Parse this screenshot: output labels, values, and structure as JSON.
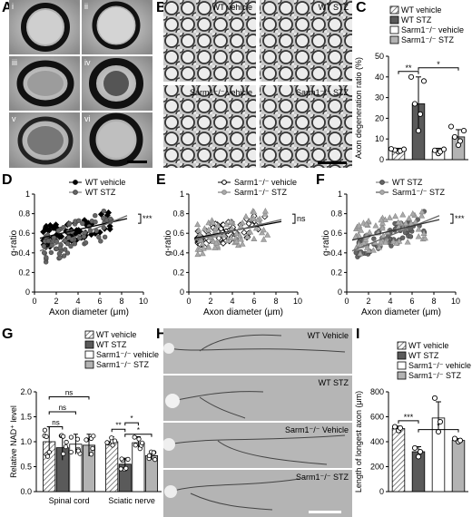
{
  "panel_labels": [
    "A",
    "B",
    "C",
    "D",
    "E",
    "F",
    "G",
    "H",
    "I"
  ],
  "panelA": {
    "sublabels": [
      "i",
      "ii",
      "iii",
      "iv",
      "v",
      "vi"
    ]
  },
  "panelB": {
    "labels": [
      "WT vehicle",
      "WT STZ",
      "Sarm1⁻/⁻ vehicle",
      "Sarm1⁻/⁻ STZ"
    ]
  },
  "panelH": {
    "labels": [
      "WT Vehicle",
      "WT STZ",
      "Sarm1⁻/⁻ Vehicle",
      "Sarm1⁻/⁻ STZ"
    ]
  },
  "chart_data": [
    {
      "id": "C",
      "type": "bar",
      "ylabel": "Axon degeneration ratio (%)",
      "ylim": [
        0,
        50
      ],
      "yticks": [
        0,
        10,
        20,
        30,
        40,
        50
      ],
      "categories": [
        "WT vehicle",
        "WT STZ",
        "Sarm1⁻/⁻ vehicle",
        "Sarm1⁻/⁻ STZ"
      ],
      "values": [
        4.5,
        27,
        4,
        11
      ],
      "errors": [
        1,
        13,
        1.5,
        3.5
      ],
      "points": [
        [
          3.8,
          4.2,
          4.6,
          5.0,
          5.2
        ],
        [
          14,
          22,
          27,
          38,
          40
        ],
        [
          3,
          3.8,
          4.5,
          5
        ],
        [
          7,
          9,
          11,
          14,
          16
        ]
      ],
      "legend": [
        "WT vehicle",
        "WT STZ",
        "Sarm1⁻/⁻ vehicle",
        "Sarm1⁻/⁻ STZ"
      ],
      "annotations": [
        {
          "text": "**",
          "from": 0,
          "to": 1
        },
        {
          "text": "*",
          "from": 1,
          "to": 3
        }
      ]
    },
    {
      "id": "D",
      "type": "scatter",
      "xlabel": "Axon diameter (μm)",
      "ylabel": "g-ratio",
      "xlim": [
        0,
        10
      ],
      "ylim": [
        0,
        1.0
      ],
      "xticks": [
        0,
        2,
        4,
        6,
        8,
        10
      ],
      "yticks": [
        0,
        0.2,
        0.4,
        0.6,
        0.8,
        1.0
      ],
      "series": [
        {
          "name": "WT vehicle",
          "fit": [
            [
              0.5,
              0.55
            ],
            [
              8.5,
              0.75
            ]
          ]
        },
        {
          "name": "WT STZ",
          "fit": [
            [
              0.5,
              0.42
            ],
            [
              8.5,
              0.78
            ]
          ]
        }
      ],
      "annotation": "***"
    },
    {
      "id": "E",
      "type": "scatter",
      "xlabel": "Axon diameter (μm)",
      "ylabel": "g-ratio",
      "xlim": [
        0,
        10
      ],
      "ylim": [
        0,
        1.0
      ],
      "xticks": [
        0,
        2,
        4,
        6,
        8,
        10
      ],
      "yticks": [
        0,
        0.2,
        0.4,
        0.6,
        0.8,
        1.0
      ],
      "series": [
        {
          "name": "Sarm1⁻/⁻ vehicle",
          "fit": [
            [
              0.5,
              0.55
            ],
            [
              8.5,
              0.72
            ]
          ]
        },
        {
          "name": "Sarm1⁻/⁻ STZ",
          "fit": [
            [
              0.5,
              0.53
            ],
            [
              8.5,
              0.74
            ]
          ]
        }
      ],
      "annotation": "ns"
    },
    {
      "id": "F",
      "type": "scatter",
      "xlabel": "Axon diameter (μm)",
      "ylabel": "g-ratio",
      "xlim": [
        0,
        10
      ],
      "ylim": [
        0,
        1.0
      ],
      "xticks": [
        0,
        2,
        4,
        6,
        8,
        10
      ],
      "yticks": [
        0,
        0.2,
        0.4,
        0.6,
        0.8,
        1.0
      ],
      "series": [
        {
          "name": "WT STZ",
          "fit": [
            [
              0.5,
              0.42
            ],
            [
              8.5,
              0.78
            ]
          ]
        },
        {
          "name": "Sarm1⁻/⁻ STZ",
          "fit": [
            [
              0.5,
              0.53
            ],
            [
              8.5,
              0.74
            ]
          ]
        }
      ],
      "annotation": "***"
    },
    {
      "id": "G",
      "type": "bar",
      "ylabel": "Relative NAD⁺ level",
      "ylim": [
        0,
        2.0
      ],
      "yticks": [
        0,
        0.5,
        1.0,
        1.5,
        2.0
      ],
      "groups": [
        "Spinal cord",
        "Sciatic nerve"
      ],
      "legend": [
        "WT vehicle",
        "WT STZ",
        "Sarm1⁻/⁻ vehicle",
        "Sarm1⁻/⁻ STZ"
      ],
      "values": [
        [
          1.0,
          0.88,
          0.95,
          0.93
        ],
        [
          1.0,
          0.55,
          0.98,
          0.72
        ]
      ],
      "errors": [
        [
          0.3,
          0.25,
          0.2,
          0.22
        ],
        [
          0.1,
          0.12,
          0.12,
          0.08
        ]
      ],
      "annotations": [
        {
          "text": "ns",
          "group": 0,
          "from": 0,
          "to": 1,
          "level": 1.3
        },
        {
          "text": "ns",
          "group": 0,
          "from": 0,
          "to": 2,
          "level": 1.6
        },
        {
          "text": "ns",
          "group": 0,
          "from": 0,
          "to": 3,
          "level": 1.9
        },
        {
          "text": "**",
          "group": 1,
          "from": 0,
          "to": 1,
          "level": 1.25
        },
        {
          "text": "*",
          "group": 1,
          "from": 1,
          "to": 3,
          "level": 1.15
        },
        {
          "text": "*",
          "group": 1,
          "from": 1,
          "to": 2,
          "level": 1.38
        }
      ]
    },
    {
      "id": "I",
      "type": "bar",
      "ylabel": "Length of longest axon (μm)",
      "ylim": [
        0,
        800
      ],
      "yticks": [
        0,
        200,
        400,
        600,
        800
      ],
      "categories": [
        "WT vehicle",
        "WT STZ",
        "Sarm1⁻/⁻ vehicle",
        "Sarm1⁻/⁻ STZ"
      ],
      "values": [
        505,
        320,
        590,
        410
      ],
      "errors": [
        20,
        40,
        130,
        15
      ],
      "points": [
        [
          490,
          510,
          520
        ],
        [
          280,
          320,
          350
        ],
        [
          480,
          560,
          750
        ],
        [
          400,
          410,
          425
        ]
      ],
      "legend": [
        "WT vehicle",
        "WT STZ",
        "Sarm1⁻/⁻ vehicle",
        "Sarm1⁻/⁻ STZ"
      ],
      "annotations": [
        {
          "text": "***",
          "from": 0,
          "to": 1
        },
        {
          "text": "*",
          "from": 1,
          "to": 3
        }
      ]
    }
  ]
}
